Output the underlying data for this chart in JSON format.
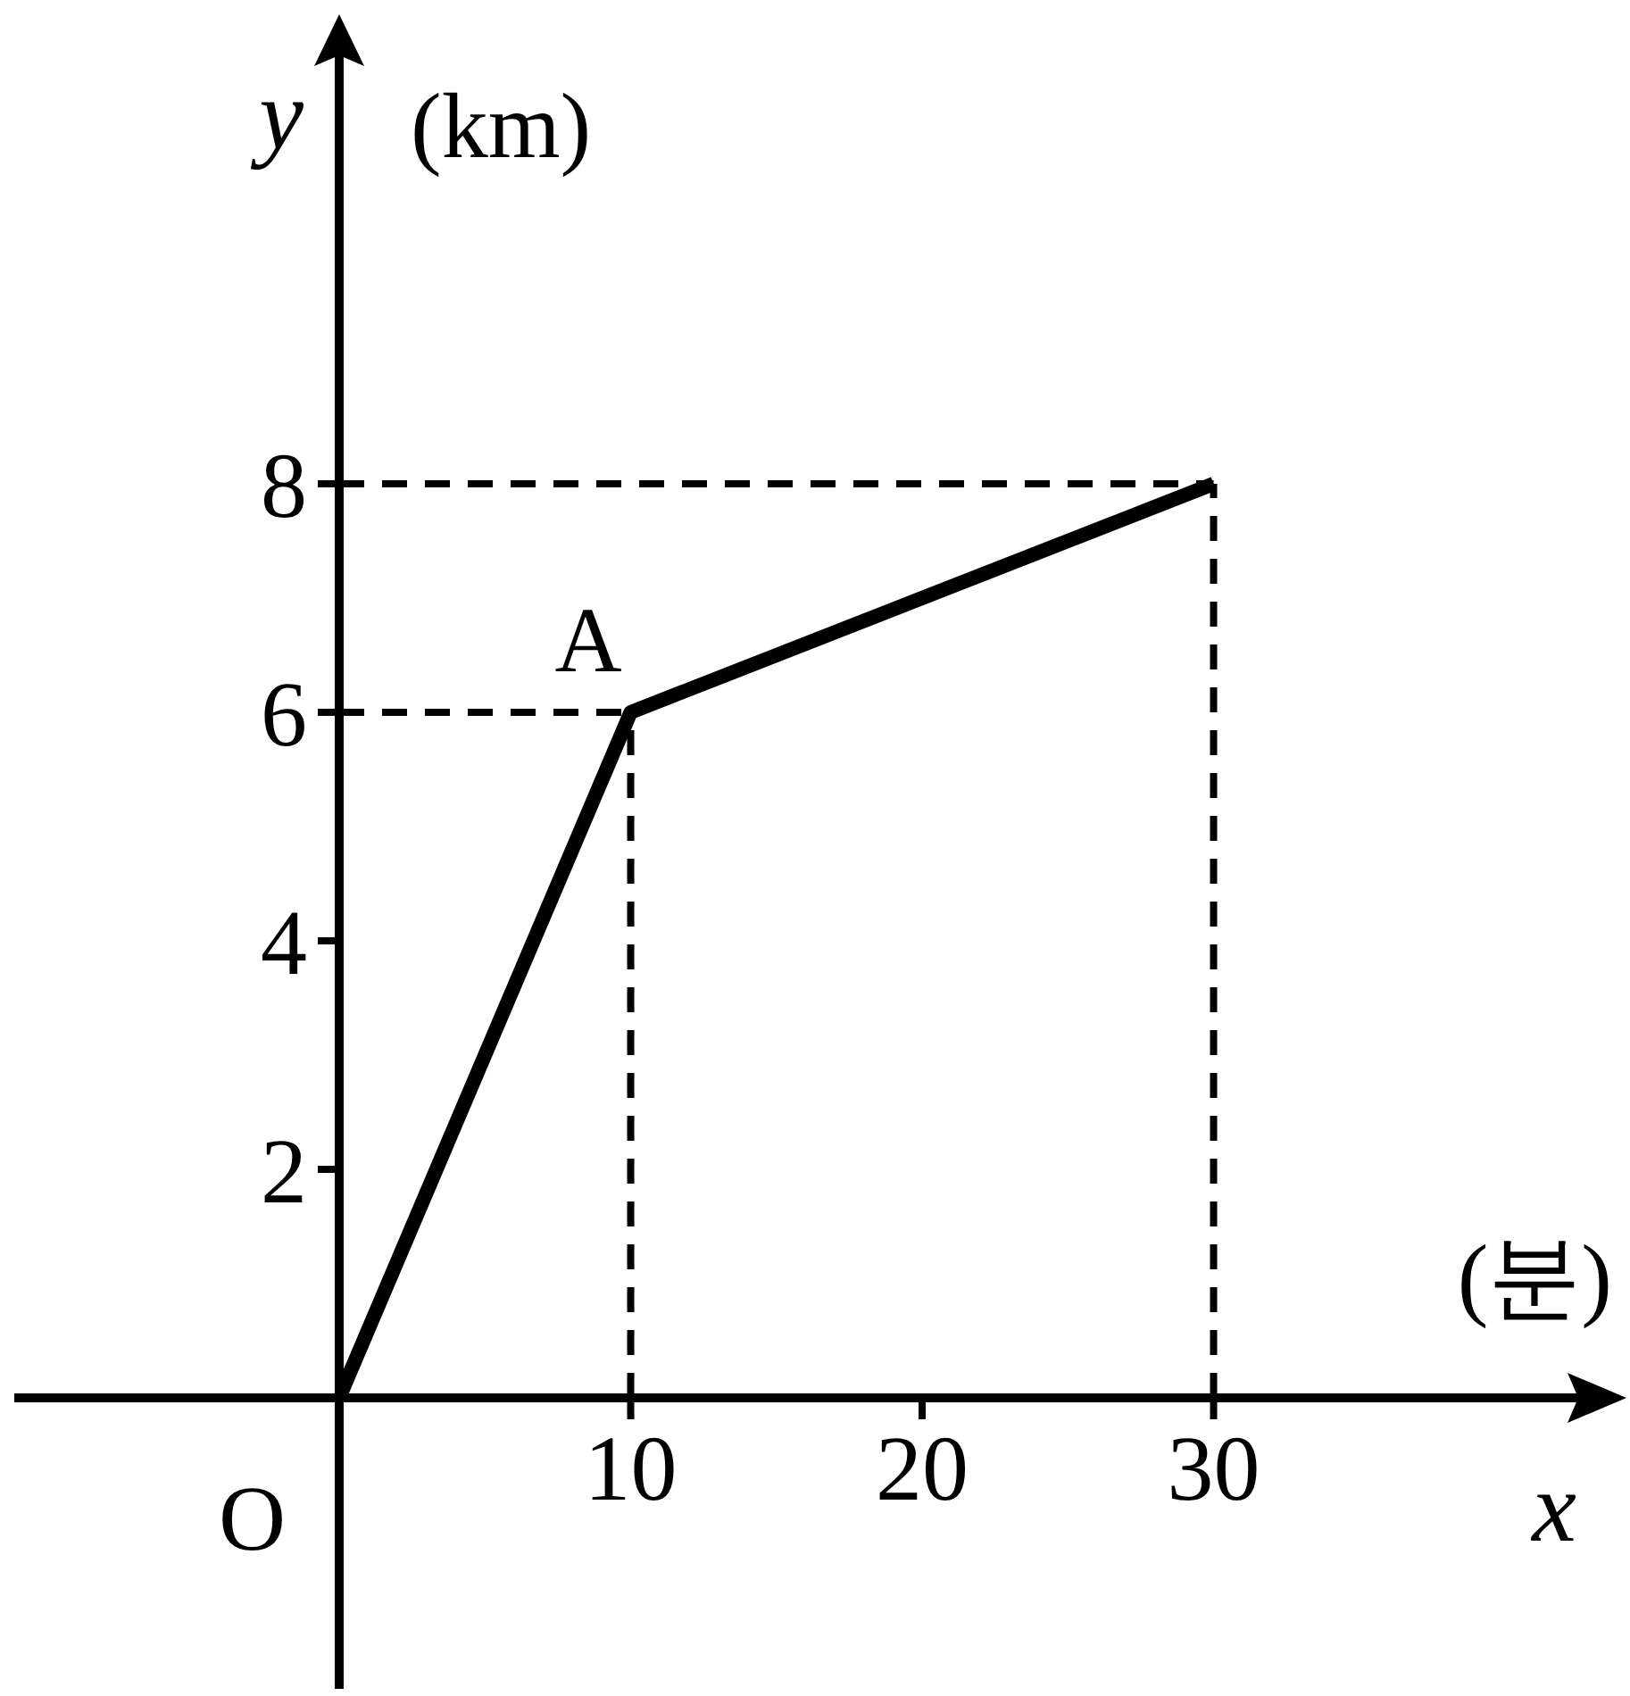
{
  "chart_data": {
    "type": "line",
    "xlabel": "x",
    "ylabel": "y",
    "x": [
      0,
      10,
      30
    ],
    "series": [
      {
        "color": "#000000",
        "values": [
          0,
          6,
          8
        ]
      }
    ],
    "xlim": [
      0,
      43
    ],
    "ylim": [
      0,
      12
    ],
    "xticks": [
      10,
      20,
      30
    ],
    "yticks": [
      2,
      4,
      6,
      8
    ],
    "marker": "none",
    "line_style": "solid",
    "ref_lines": [
      {
        "axis": "y",
        "value": 6,
        "color": "#000000",
        "line_style": "dashed"
      },
      {
        "axis": "y",
        "value": 8,
        "color": "#000000",
        "line_style": "dashed"
      },
      {
        "axis": "x",
        "value": 10,
        "color": "#000000",
        "line_style": "dashed"
      },
      {
        "axis": "x",
        "value": 30,
        "color": "#000000",
        "line_style": "dashed"
      }
    ],
    "annotations": [
      "(km)",
      "(분)",
      "O",
      {
        "text": "A",
        "x": 10,
        "y": 6
      }
    ]
  }
}
